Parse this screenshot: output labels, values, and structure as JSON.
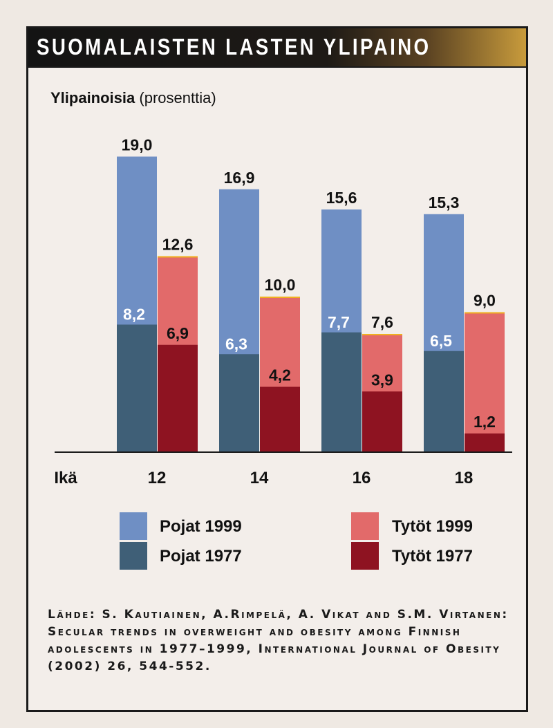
{
  "title": "SUOMALAISTEN LASTEN YLIPAINO",
  "ylabel_bold": "Ylipainoisia",
  "ylabel_rest": " (prosenttia)",
  "colors": {
    "pojat_1999": "#6f8fc4",
    "pojat_1977": "#3f5f77",
    "tytot_1999": "#e26a6a",
    "tytot_1977": "#8e1321"
  },
  "chart_data": {
    "type": "bar",
    "title": "SUOMALAISTEN LASTEN YLIPAINO",
    "ylabel": "Ylipainoisia (prosenttia)",
    "xlabel": "Ikä",
    "categories": [
      "12",
      "14",
      "16",
      "18"
    ],
    "series": [
      {
        "name": "Pojat 1999",
        "values": [
          19.0,
          16.9,
          15.6,
          15.3
        ],
        "labels": [
          "19,0",
          "16,9",
          "15,6",
          "15,3"
        ]
      },
      {
        "name": "Pojat 1977",
        "values": [
          8.2,
          6.3,
          7.7,
          6.5
        ],
        "labels": [
          "8,2",
          "6,3",
          "7,7",
          "6,5"
        ]
      },
      {
        "name": "Tytöt 1999",
        "values": [
          12.6,
          10.0,
          7.6,
          9.0
        ],
        "labels": [
          "12,6",
          "10,0",
          "7,6",
          "9,0"
        ]
      },
      {
        "name": "Tytöt 1977",
        "values": [
          6.9,
          4.2,
          3.9,
          1.2
        ],
        "labels": [
          "6,9",
          "4,2",
          "3,9",
          "1,2"
        ]
      }
    ],
    "ylim": [
      0,
      20
    ],
    "grid": false,
    "legend_position": "bottom"
  },
  "legend": {
    "pojat_1999": "Pojat 1999",
    "pojat_1977": "Pojat 1977",
    "tytot_1999": "Tytöt 1999",
    "tytot_1977": "Tytöt 1977"
  },
  "source": "Lähde: S. Kautiainen, A.Rimpelä, A. Vikat and S.M. Virtanen: Secular trends in overweight and obesity among Finnish adolescents in 1977–1999, International Journal of Obesity (2002) 26, 544-552."
}
